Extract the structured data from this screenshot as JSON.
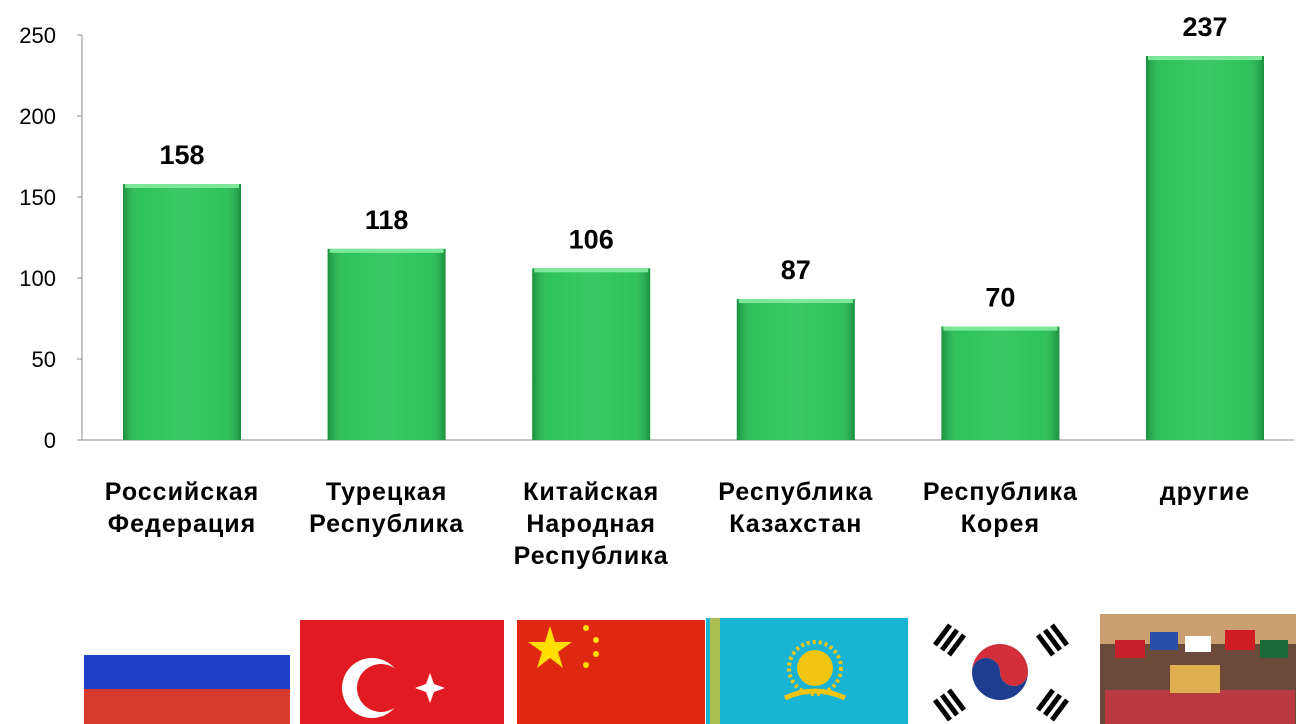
{
  "chart_data": {
    "type": "bar",
    "categories": [
      "Российская\nФедерация",
      "Турецкая\nРеспублика",
      "Китайская\nНародная\nРеспублика",
      "Республика\nКазахстан",
      "Республика\nКорея",
      "другие"
    ],
    "values": [
      158,
      118,
      106,
      87,
      70,
      237
    ],
    "color": "#22c052",
    "ylim": [
      0,
      250
    ],
    "yticks": [
      0,
      50,
      100,
      150,
      200,
      250
    ],
    "grid": false
  }
}
